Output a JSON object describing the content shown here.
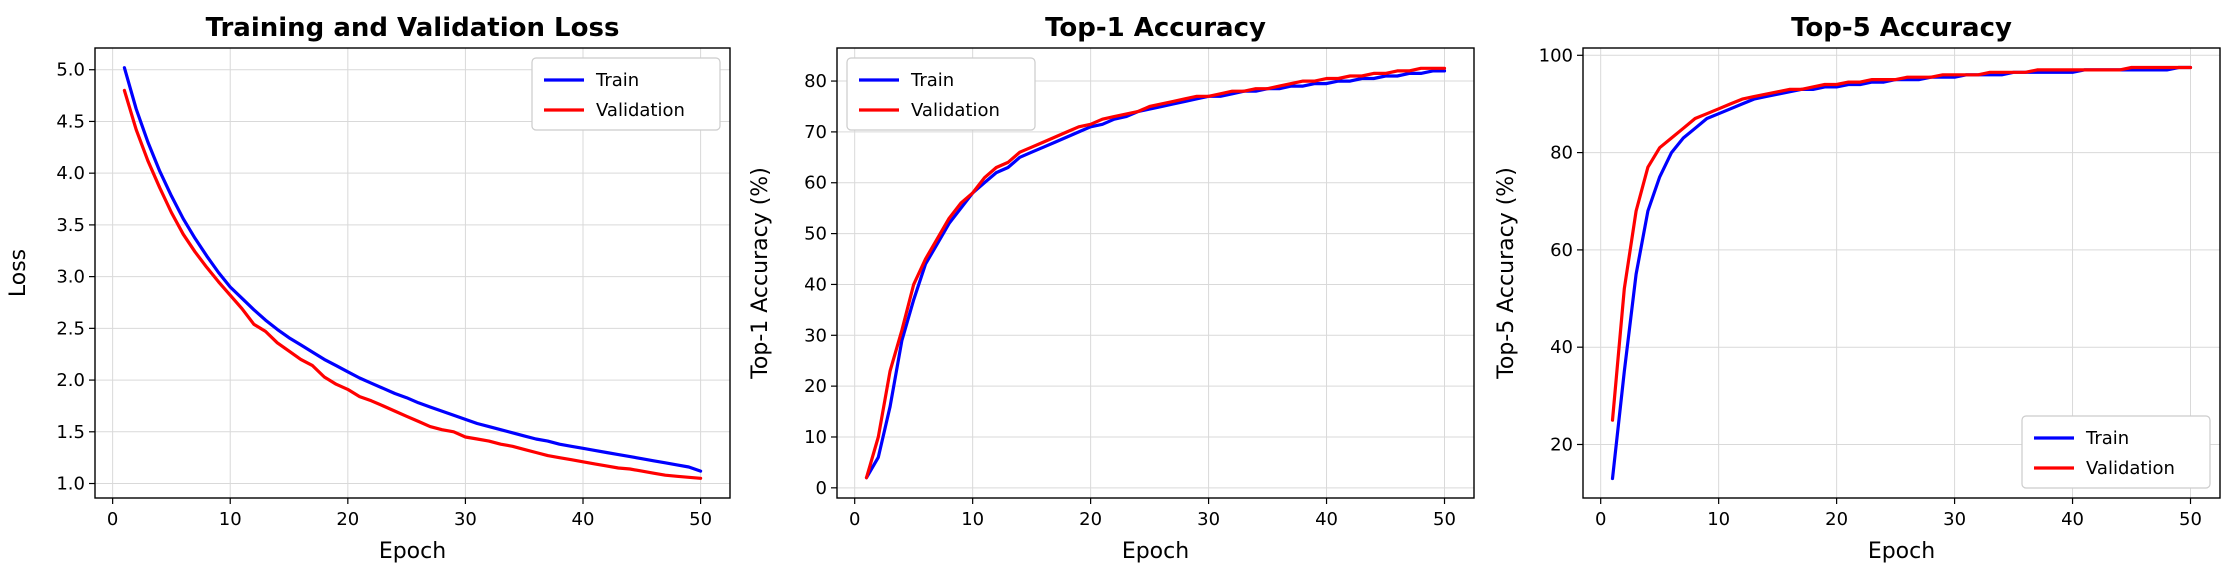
{
  "chart_data": [
    {
      "type": "line",
      "title": "Training and Validation Loss",
      "xlabel": "Epoch",
      "ylabel": "Loss",
      "xlim": [
        -1.5,
        52.5
      ],
      "ylim": [
        0.86,
        5.21
      ],
      "xticks": [
        0,
        10,
        20,
        30,
        40,
        50
      ],
      "yticks": [
        1.0,
        1.5,
        2.0,
        2.5,
        3.0,
        3.5,
        4.0,
        4.5,
        5.0
      ],
      "ytick_labels": [
        "1.0",
        "1.5",
        "2.0",
        "2.5",
        "3.0",
        "3.5",
        "4.0",
        "4.5",
        "5.0"
      ],
      "grid": true,
      "legend_position": "top-right",
      "x": [
        1,
        2,
        3,
        4,
        5,
        6,
        7,
        8,
        9,
        10,
        11,
        12,
        13,
        14,
        15,
        16,
        17,
        18,
        19,
        20,
        21,
        22,
        23,
        24,
        25,
        26,
        27,
        28,
        29,
        30,
        31,
        32,
        33,
        34,
        35,
        36,
        37,
        38,
        39,
        40,
        41,
        42,
        43,
        44,
        45,
        46,
        47,
        48,
        49,
        50
      ],
      "series": [
        {
          "name": "Train",
          "color": "#0000ff",
          "values": [
            5.02,
            4.62,
            4.3,
            4.02,
            3.78,
            3.56,
            3.37,
            3.2,
            3.04,
            2.9,
            2.79,
            2.68,
            2.58,
            2.49,
            2.41,
            2.34,
            2.27,
            2.2,
            2.14,
            2.08,
            2.02,
            1.97,
            1.92,
            1.87,
            1.83,
            1.78,
            1.74,
            1.7,
            1.66,
            1.62,
            1.58,
            1.55,
            1.52,
            1.49,
            1.46,
            1.43,
            1.41,
            1.38,
            1.36,
            1.34,
            1.32,
            1.3,
            1.28,
            1.26,
            1.24,
            1.22,
            1.2,
            1.18,
            1.16,
            1.12
          ]
        },
        {
          "name": "Validation",
          "color": "#ff0000",
          "values": [
            4.8,
            4.42,
            4.12,
            3.86,
            3.62,
            3.41,
            3.24,
            3.09,
            2.95,
            2.82,
            2.69,
            2.54,
            2.47,
            2.36,
            2.28,
            2.2,
            2.14,
            2.03,
            1.96,
            1.91,
            1.84,
            1.8,
            1.75,
            1.7,
            1.65,
            1.6,
            1.55,
            1.52,
            1.5,
            1.45,
            1.43,
            1.41,
            1.38,
            1.36,
            1.33,
            1.3,
            1.27,
            1.25,
            1.23,
            1.21,
            1.19,
            1.17,
            1.15,
            1.14,
            1.12,
            1.1,
            1.08,
            1.07,
            1.06,
            1.05
          ]
        }
      ]
    },
    {
      "type": "line",
      "title": "Top-1 Accuracy",
      "xlabel": "Epoch",
      "ylabel": "Top-1 Accuracy (%)",
      "xlim": [
        -1.5,
        52.5
      ],
      "ylim": [
        -2.0,
        86.5
      ],
      "xticks": [
        0,
        10,
        20,
        30,
        40,
        50
      ],
      "yticks": [
        0,
        10,
        20,
        30,
        40,
        50,
        60,
        70,
        80
      ],
      "ytick_labels": [
        "0",
        "10",
        "20",
        "30",
        "40",
        "50",
        "60",
        "70",
        "80"
      ],
      "grid": true,
      "legend_position": "top-left",
      "x": [
        1,
        2,
        3,
        4,
        5,
        6,
        7,
        8,
        9,
        10,
        11,
        12,
        13,
        14,
        15,
        16,
        17,
        18,
        19,
        20,
        21,
        22,
        23,
        24,
        25,
        26,
        27,
        28,
        29,
        30,
        31,
        32,
        33,
        34,
        35,
        36,
        37,
        38,
        39,
        40,
        41,
        42,
        43,
        44,
        45,
        46,
        47,
        48,
        49,
        50
      ],
      "series": [
        {
          "name": "Train",
          "color": "#0000ff",
          "values": [
            2,
            6,
            16,
            29,
            37,
            44,
            48,
            52,
            55,
            58,
            60,
            62,
            63,
            65,
            66,
            67,
            68,
            69,
            70,
            71,
            71.5,
            72.5,
            73,
            74,
            74.5,
            75,
            75.5,
            76,
            76.5,
            77,
            77,
            77.5,
            78,
            78,
            78.5,
            78.5,
            79,
            79,
            79.5,
            79.5,
            80,
            80,
            80.5,
            80.5,
            81,
            81,
            81.5,
            81.5,
            82,
            82
          ]
        },
        {
          "name": "Validation",
          "color": "#ff0000",
          "values": [
            2,
            10,
            23,
            31,
            40,
            45,
            49,
            53,
            56,
            58,
            61,
            63,
            64,
            66,
            67,
            68,
            69,
            70,
            71,
            71.5,
            72.5,
            73,
            73.5,
            74,
            75,
            75.5,
            76,
            76.5,
            77,
            77,
            77.5,
            78,
            78,
            78.5,
            78.5,
            79,
            79.5,
            80,
            80,
            80.5,
            80.5,
            81,
            81,
            81.5,
            81.5,
            82,
            82,
            82.5,
            82.5,
            82.5
          ]
        }
      ]
    },
    {
      "type": "line",
      "title": "Top-5 Accuracy",
      "xlabel": "Epoch",
      "ylabel": "Top-5 Accuracy (%)",
      "xlim": [
        -1.5,
        52.5
      ],
      "ylim": [
        9.0,
        101.5
      ],
      "xticks": [
        0,
        10,
        20,
        30,
        40,
        50
      ],
      "yticks": [
        20,
        40,
        60,
        80,
        100
      ],
      "ytick_labels": [
        "20",
        "40",
        "60",
        "80",
        "100"
      ],
      "grid": true,
      "legend_position": "bottom-right",
      "x": [
        1,
        2,
        3,
        4,
        5,
        6,
        7,
        8,
        9,
        10,
        11,
        12,
        13,
        14,
        15,
        16,
        17,
        18,
        19,
        20,
        21,
        22,
        23,
        24,
        25,
        26,
        27,
        28,
        29,
        30,
        31,
        32,
        33,
        34,
        35,
        36,
        37,
        38,
        39,
        40,
        41,
        42,
        43,
        44,
        45,
        46,
        47,
        48,
        49,
        50
      ],
      "series": [
        {
          "name": "Train",
          "color": "#0000ff",
          "values": [
            13,
            35,
            55,
            68,
            75,
            80,
            83,
            85,
            87,
            88,
            89,
            90,
            91,
            91.5,
            92,
            92.5,
            93,
            93,
            93.5,
            93.5,
            94,
            94,
            94.5,
            94.5,
            95,
            95,
            95,
            95.5,
            95.5,
            95.5,
            96,
            96,
            96,
            96,
            96.5,
            96.5,
            96.5,
            96.5,
            96.5,
            96.5,
            97,
            97,
            97,
            97,
            97,
            97,
            97,
            97,
            97.5,
            97.5
          ]
        },
        {
          "name": "Validation",
          "color": "#ff0000",
          "values": [
            25,
            52,
            68,
            77,
            81,
            83,
            85,
            87,
            88,
            89,
            90,
            91,
            91.5,
            92,
            92.5,
            93,
            93,
            93.5,
            94,
            94,
            94.5,
            94.5,
            95,
            95,
            95,
            95.5,
            95.5,
            95.5,
            96,
            96,
            96,
            96,
            96.5,
            96.5,
            96.5,
            96.5,
            97,
            97,
            97,
            97,
            97,
            97,
            97,
            97,
            97.5,
            97.5,
            97.5,
            97.5,
            97.5,
            97.5
          ]
        }
      ]
    }
  ]
}
